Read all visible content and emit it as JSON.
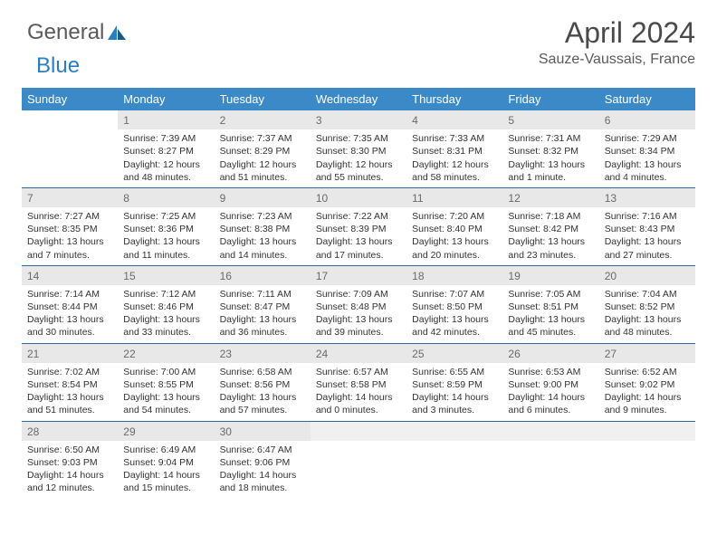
{
  "logo": {
    "part1": "General",
    "part2": "Blue"
  },
  "title": "April 2024",
  "location": "Sauze-Vaussais, France",
  "colors": {
    "header_bg": "#3b89c7",
    "header_text": "#ffffff",
    "week_border": "#2a6aa0",
    "num_bg": "#e8e8e8",
    "num_text": "#6a6a6a",
    "body_text": "#333333"
  },
  "day_labels": [
    "Sunday",
    "Monday",
    "Tuesday",
    "Wednesday",
    "Thursday",
    "Friday",
    "Saturday"
  ],
  "leading_blanks": 1,
  "days": [
    {
      "n": 1,
      "sr": "7:39 AM",
      "ss": "8:27 PM",
      "dl": "12 hours and 48 minutes."
    },
    {
      "n": 2,
      "sr": "7:37 AM",
      "ss": "8:29 PM",
      "dl": "12 hours and 51 minutes."
    },
    {
      "n": 3,
      "sr": "7:35 AM",
      "ss": "8:30 PM",
      "dl": "12 hours and 55 minutes."
    },
    {
      "n": 4,
      "sr": "7:33 AM",
      "ss": "8:31 PM",
      "dl": "12 hours and 58 minutes."
    },
    {
      "n": 5,
      "sr": "7:31 AM",
      "ss": "8:32 PM",
      "dl": "13 hours and 1 minute."
    },
    {
      "n": 6,
      "sr": "7:29 AM",
      "ss": "8:34 PM",
      "dl": "13 hours and 4 minutes."
    },
    {
      "n": 7,
      "sr": "7:27 AM",
      "ss": "8:35 PM",
      "dl": "13 hours and 7 minutes."
    },
    {
      "n": 8,
      "sr": "7:25 AM",
      "ss": "8:36 PM",
      "dl": "13 hours and 11 minutes."
    },
    {
      "n": 9,
      "sr": "7:23 AM",
      "ss": "8:38 PM",
      "dl": "13 hours and 14 minutes."
    },
    {
      "n": 10,
      "sr": "7:22 AM",
      "ss": "8:39 PM",
      "dl": "13 hours and 17 minutes."
    },
    {
      "n": 11,
      "sr": "7:20 AM",
      "ss": "8:40 PM",
      "dl": "13 hours and 20 minutes."
    },
    {
      "n": 12,
      "sr": "7:18 AM",
      "ss": "8:42 PM",
      "dl": "13 hours and 23 minutes."
    },
    {
      "n": 13,
      "sr": "7:16 AM",
      "ss": "8:43 PM",
      "dl": "13 hours and 27 minutes."
    },
    {
      "n": 14,
      "sr": "7:14 AM",
      "ss": "8:44 PM",
      "dl": "13 hours and 30 minutes."
    },
    {
      "n": 15,
      "sr": "7:12 AM",
      "ss": "8:46 PM",
      "dl": "13 hours and 33 minutes."
    },
    {
      "n": 16,
      "sr": "7:11 AM",
      "ss": "8:47 PM",
      "dl": "13 hours and 36 minutes."
    },
    {
      "n": 17,
      "sr": "7:09 AM",
      "ss": "8:48 PM",
      "dl": "13 hours and 39 minutes."
    },
    {
      "n": 18,
      "sr": "7:07 AM",
      "ss": "8:50 PM",
      "dl": "13 hours and 42 minutes."
    },
    {
      "n": 19,
      "sr": "7:05 AM",
      "ss": "8:51 PM",
      "dl": "13 hours and 45 minutes."
    },
    {
      "n": 20,
      "sr": "7:04 AM",
      "ss": "8:52 PM",
      "dl": "13 hours and 48 minutes."
    },
    {
      "n": 21,
      "sr": "7:02 AM",
      "ss": "8:54 PM",
      "dl": "13 hours and 51 minutes."
    },
    {
      "n": 22,
      "sr": "7:00 AM",
      "ss": "8:55 PM",
      "dl": "13 hours and 54 minutes."
    },
    {
      "n": 23,
      "sr": "6:58 AM",
      "ss": "8:56 PM",
      "dl": "13 hours and 57 minutes."
    },
    {
      "n": 24,
      "sr": "6:57 AM",
      "ss": "8:58 PM",
      "dl": "14 hours and 0 minutes."
    },
    {
      "n": 25,
      "sr": "6:55 AM",
      "ss": "8:59 PM",
      "dl": "14 hours and 3 minutes."
    },
    {
      "n": 26,
      "sr": "6:53 AM",
      "ss": "9:00 PM",
      "dl": "14 hours and 6 minutes."
    },
    {
      "n": 27,
      "sr": "6:52 AM",
      "ss": "9:02 PM",
      "dl": "14 hours and 9 minutes."
    },
    {
      "n": 28,
      "sr": "6:50 AM",
      "ss": "9:03 PM",
      "dl": "14 hours and 12 minutes."
    },
    {
      "n": 29,
      "sr": "6:49 AM",
      "ss": "9:04 PM",
      "dl": "14 hours and 15 minutes."
    },
    {
      "n": 30,
      "sr": "6:47 AM",
      "ss": "9:06 PM",
      "dl": "14 hours and 18 minutes."
    }
  ],
  "labels": {
    "sunrise": "Sunrise:",
    "sunset": "Sunset:",
    "daylight": "Daylight:"
  }
}
